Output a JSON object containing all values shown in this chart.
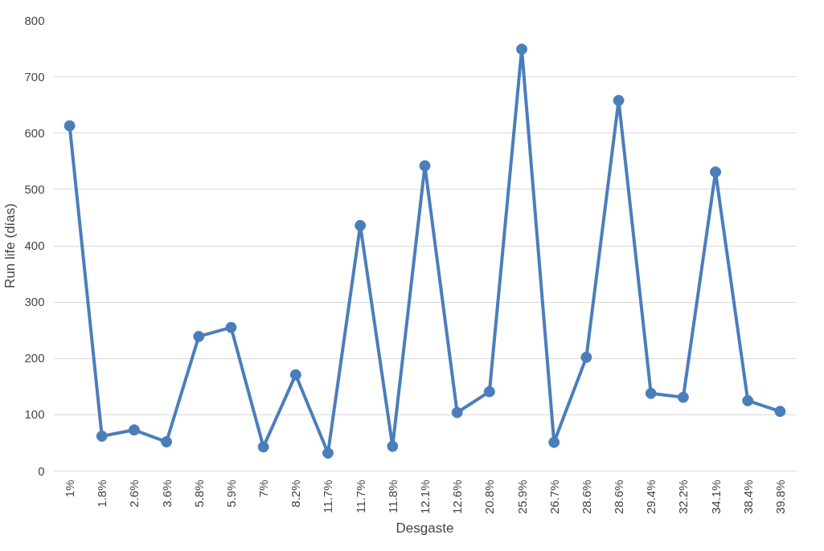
{
  "chart_data": {
    "type": "line",
    "xlabel": "Desgaste",
    "ylabel": "Run life (días)",
    "categories": [
      "1%",
      "1.8%",
      "2.6%",
      "3.6%",
      "5.8%",
      "5.9%",
      "7%",
      "8.2%",
      "11.7%",
      "11.7%",
      "11.8%",
      "12.1%",
      "12.6%",
      "20.8%",
      "25.9%",
      "26.7%",
      "28.6%",
      "28.6%",
      "29.4%",
      "32.2%",
      "34.1%",
      "38.4%",
      "39.8%"
    ],
    "series": [
      {
        "color": "#4a7ebb",
        "values": [
          613,
          62,
          73,
          52,
          239,
          255,
          43,
          171,
          32,
          436,
          44,
          542,
          104,
          141,
          749,
          51,
          202,
          658,
          138,
          131,
          531,
          125,
          106
        ]
      }
    ],
    "ylim": [
      0,
      800
    ],
    "yticks": [
      0,
      100,
      200,
      300,
      400,
      500,
      600,
      700,
      800
    ],
    "grid": "y",
    "marker": "circle",
    "line_style": "solid"
  }
}
